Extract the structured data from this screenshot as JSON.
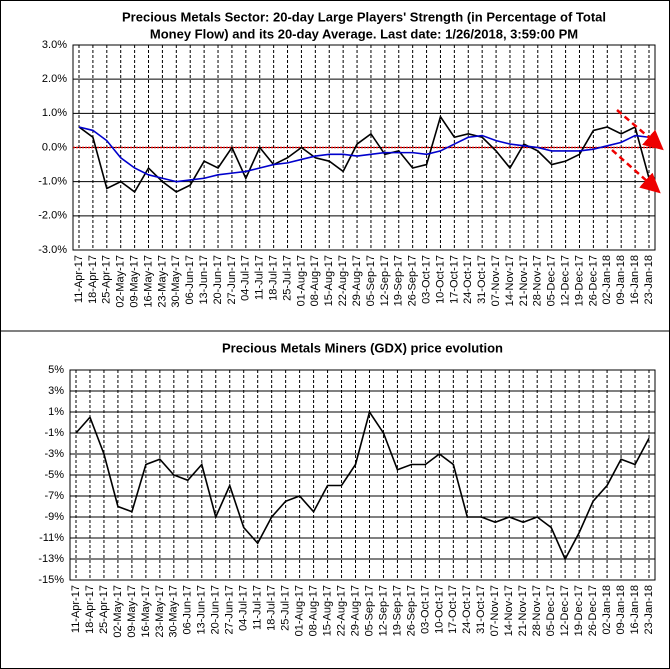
{
  "chart_data": [
    {
      "type": "line",
      "title": [
        "Precious Metals Sector: 20-day Large Players' Strength (in Percentage of Total",
        "Money Flow) and its 20-day Average. Last date: 1/26/2018, 3:59:00 PM"
      ],
      "categories": [
        "11-Apr-17",
        "18-Apr-17",
        "25-Apr-17",
        "02-May-17",
        "09-May-17",
        "16-May-17",
        "23-May-17",
        "30-May-17",
        "06-Jun-17",
        "13-Jun-17",
        "20-Jun-17",
        "27-Jun-17",
        "04-Jul-17",
        "11-Jul-17",
        "18-Jul-17",
        "25-Jul-17",
        "01-Aug-17",
        "08-Aug-17",
        "15-Aug-17",
        "22-Aug-17",
        "29-Aug-17",
        "05-Sep-17",
        "12-Sep-17",
        "19-Sep-17",
        "26-Sep-17",
        "03-Oct-17",
        "10-Oct-17",
        "17-Oct-17",
        "24-Oct-17",
        "31-Oct-17",
        "07-Nov-17",
        "14-Nov-17",
        "21-Nov-17",
        "28-Nov-17",
        "05-Dec-17",
        "12-Dec-17",
        "19-Dec-17",
        "26-Dec-17",
        "02-Jan-18",
        "09-Jan-18",
        "16-Jan-18",
        "23-Jan-18"
      ],
      "series": [
        {
          "color": "#000000",
          "values": [
            0.6,
            0.3,
            -1.2,
            -1.0,
            -1.3,
            -0.6,
            -1.0,
            -1.3,
            -1.1,
            -0.4,
            -0.6,
            0.0,
            -0.9,
            0.0,
            -0.5,
            -0.3,
            0.0,
            -0.3,
            -0.4,
            -0.7,
            0.1,
            0.4,
            -0.2,
            -0.1,
            -0.6,
            -0.5,
            0.9,
            0.3,
            0.4,
            0.3,
            -0.1,
            -0.6,
            0.1,
            -0.1,
            -0.5,
            -0.4,
            -0.2,
            0.5,
            0.6,
            0.4,
            0.6,
            -0.9
          ]
        },
        {
          "color": "#0000cc",
          "values": [
            0.6,
            0.5,
            0.2,
            -0.3,
            -0.6,
            -0.8,
            -0.9,
            -1.0,
            -0.95,
            -0.9,
            -0.8,
            -0.75,
            -0.7,
            -0.6,
            -0.5,
            -0.45,
            -0.35,
            -0.25,
            -0.2,
            -0.2,
            -0.25,
            -0.2,
            -0.15,
            -0.15,
            -0.15,
            -0.2,
            -0.1,
            0.1,
            0.3,
            0.35,
            0.2,
            0.1,
            0.05,
            0.0,
            -0.1,
            -0.1,
            -0.1,
            -0.05,
            0.05,
            0.15,
            0.35,
            0.3
          ]
        }
      ],
      "ylim": [
        -3,
        3
      ],
      "yticks": [
        {
          "value": -3,
          "label": "-3.0%"
        },
        {
          "value": -2,
          "label": "-2.0%"
        },
        {
          "value": -1,
          "label": "-1.0%"
        },
        {
          "value": 0,
          "label": "0.0%"
        },
        {
          "value": 1,
          "label": "1.0%"
        },
        {
          "value": 2,
          "label": "2.0%"
        },
        {
          "value": 3,
          "label": "3.0%"
        }
      ],
      "grid": true
    },
    {
      "type": "line",
      "title": [
        "Precious Metals Miners (GDX) price evolution"
      ],
      "categories": [
        "11-Apr-17",
        "18-Apr-17",
        "25-Apr-17",
        "02-May-17",
        "09-May-17",
        "16-May-17",
        "23-May-17",
        "30-May-17",
        "06-Jun-17",
        "13-Jun-17",
        "20-Jun-17",
        "27-Jun-17",
        "04-Jul-17",
        "11-Jul-17",
        "18-Jul-17",
        "25-Jul-17",
        "01-Aug-17",
        "08-Aug-17",
        "15-Aug-17",
        "22-Aug-17",
        "29-Aug-17",
        "05-Sep-17",
        "12-Sep-17",
        "19-Sep-17",
        "26-Sep-17",
        "03-Oct-17",
        "10-Oct-17",
        "17-Oct-17",
        "24-Oct-17",
        "31-Oct-17",
        "07-Nov-17",
        "14-Nov-17",
        "21-Nov-17",
        "28-Nov-17",
        "05-Dec-17",
        "12-Dec-17",
        "19-Dec-17",
        "26-Dec-17",
        "02-Jan-18",
        "09-Jan-18",
        "16-Jan-18",
        "23-Jan-18"
      ],
      "series": [
        {
          "color": "#000000",
          "values": [
            -1,
            0.5,
            -3,
            -8,
            -8.5,
            -4,
            -3.5,
            -5,
            -5.5,
            -4,
            -9,
            -6,
            -10,
            -11.5,
            -9,
            -7.5,
            -7,
            -8.5,
            -6,
            -6,
            -4,
            1,
            -1,
            -4.5,
            -4,
            -4,
            -3,
            -4,
            -9,
            -9,
            -9.5,
            -9,
            -9.5,
            -9,
            -10,
            -13,
            -10.5,
            -7.5,
            -6,
            -3.5,
            -4,
            -1.5
          ]
        }
      ],
      "ylim": [
        -15,
        5
      ],
      "yticks": [
        {
          "value": -15,
          "label": "-15%"
        },
        {
          "value": -13,
          "label": "-13%"
        },
        {
          "value": -11,
          "label": "-11%"
        },
        {
          "value": -9,
          "label": "-9%"
        },
        {
          "value": -7,
          "label": "-7%"
        },
        {
          "value": -5,
          "label": "-5%"
        },
        {
          "value": -3,
          "label": "-3%"
        },
        {
          "value": -1,
          "label": "-1%"
        },
        {
          "value": 1,
          "label": "1%"
        },
        {
          "value": 3,
          "label": "3%"
        },
        {
          "value": 5,
          "label": "5%"
        }
      ],
      "grid": true
    }
  ]
}
